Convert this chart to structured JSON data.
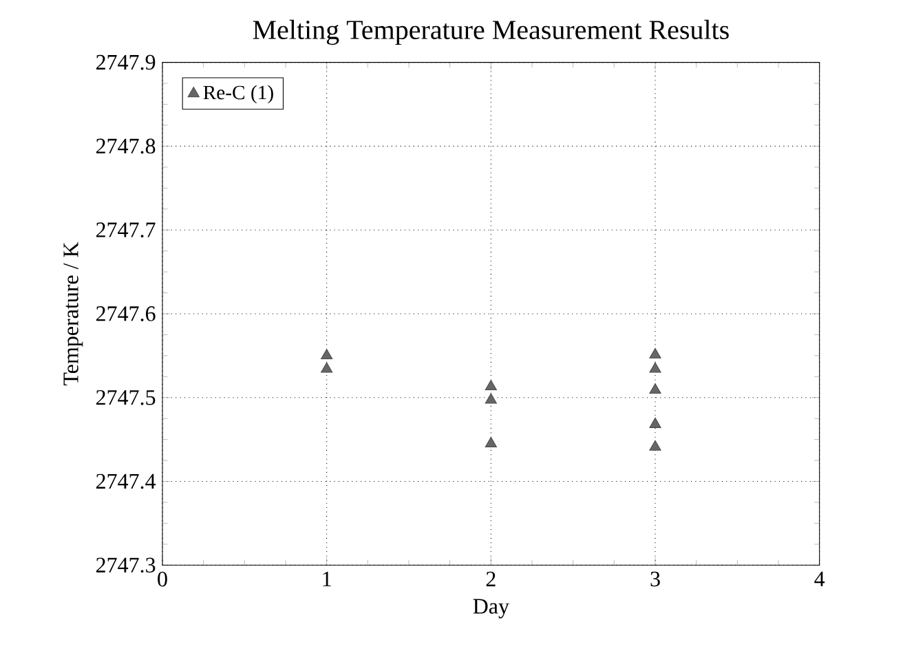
{
  "chart_data": {
    "type": "scatter",
    "title": "Melting Temperature Measurement Results",
    "xlabel": "Day",
    "ylabel": "Temperature / K",
    "series": [
      {
        "name": "Re-C (1)",
        "color": "#666666",
        "x": [
          1,
          1,
          2,
          2,
          2,
          3,
          3,
          3,
          3,
          3
        ],
        "values": [
          2747.55,
          2747.534,
          2747.513,
          2747.497,
          2747.445,
          2747.551,
          2747.534,
          2747.509,
          2747.468,
          2747.441
        ]
      }
    ],
    "xlim": [
      0,
      4
    ],
    "ylim": [
      2747.3,
      2747.9
    ],
    "xticks": [
      0,
      1,
      2,
      3,
      4
    ],
    "yticks": [
      2747.3,
      2747.4,
      2747.5,
      2747.6,
      2747.7,
      2747.8,
      2747.9
    ],
    "grid": true,
    "legend": "top left",
    "marker": "triangle"
  }
}
